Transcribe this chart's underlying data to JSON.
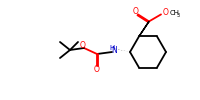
{
  "bg_color": "#ffffff",
  "line_color": "#000000",
  "O_color": "#ff0000",
  "N_color": "#0000cc",
  "lw": 1.3,
  "figsize": [
    2.0,
    1.0
  ],
  "dpi": 100,
  "xlim": [
    0,
    200
  ],
  "ylim": [
    0,
    100
  ]
}
